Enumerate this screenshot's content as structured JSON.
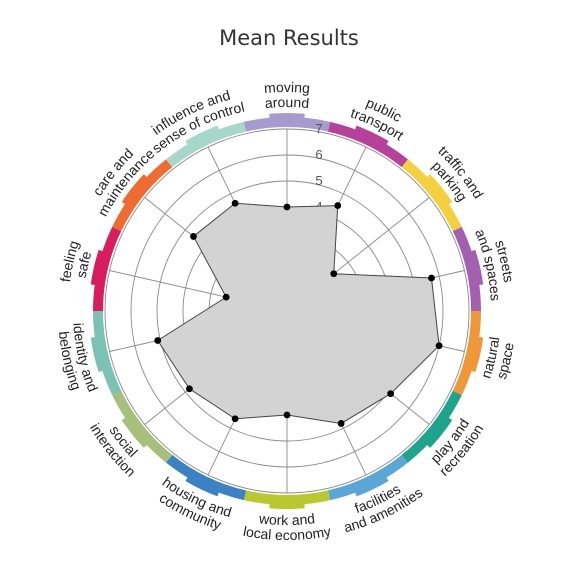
{
  "chart_data": {
    "type": "radar",
    "title": "Mean Results",
    "rmax": 7,
    "ticks": [
      "1",
      "2",
      "3",
      "4",
      "5",
      "6",
      "7"
    ],
    "categories": [
      {
        "label": [
          "moving",
          "around"
        ],
        "color": "#a59bcf"
      },
      {
        "label": [
          "public",
          "transport"
        ],
        "color": "#b7409b"
      },
      {
        "label": [
          "traffic and",
          "parking"
        ],
        "color": "#f4d03f"
      },
      {
        "label": [
          "streets",
          "and spaces"
        ],
        "color": "#a45fb0"
      },
      {
        "label": [
          "natural",
          "space"
        ],
        "color": "#f0973a"
      },
      {
        "label": [
          "play and",
          "recreation"
        ],
        "color": "#1ea38c"
      },
      {
        "label": [
          "facilities",
          "and amenities"
        ],
        "color": "#5aa6d6"
      },
      {
        "label": [
          "work and",
          "local economy"
        ],
        "color": "#b9c82e"
      },
      {
        "label": [
          "housing and",
          "community"
        ],
        "color": "#3a82c4"
      },
      {
        "label": [
          "social",
          "interaction"
        ],
        "color": "#a6bf7b"
      },
      {
        "label": [
          "identity and",
          "belonging"
        ],
        "color": "#7cc2b4"
      },
      {
        "label": [
          "feeling",
          "safe"
        ],
        "color": "#d81d5f"
      },
      {
        "label": [
          "care and",
          "maintenance"
        ],
        "color": "#f06b31"
      },
      {
        "label": [
          "influence and",
          "sense of control"
        ],
        "color": "#a5d8c8"
      }
    ],
    "values": [
      4.0,
      4.5,
      2.3,
      5.7,
      6.0,
      5.1,
      4.8,
      4.0,
      4.6,
      4.8,
      5.1,
      2.4,
      4.6,
      4.6
    ]
  }
}
